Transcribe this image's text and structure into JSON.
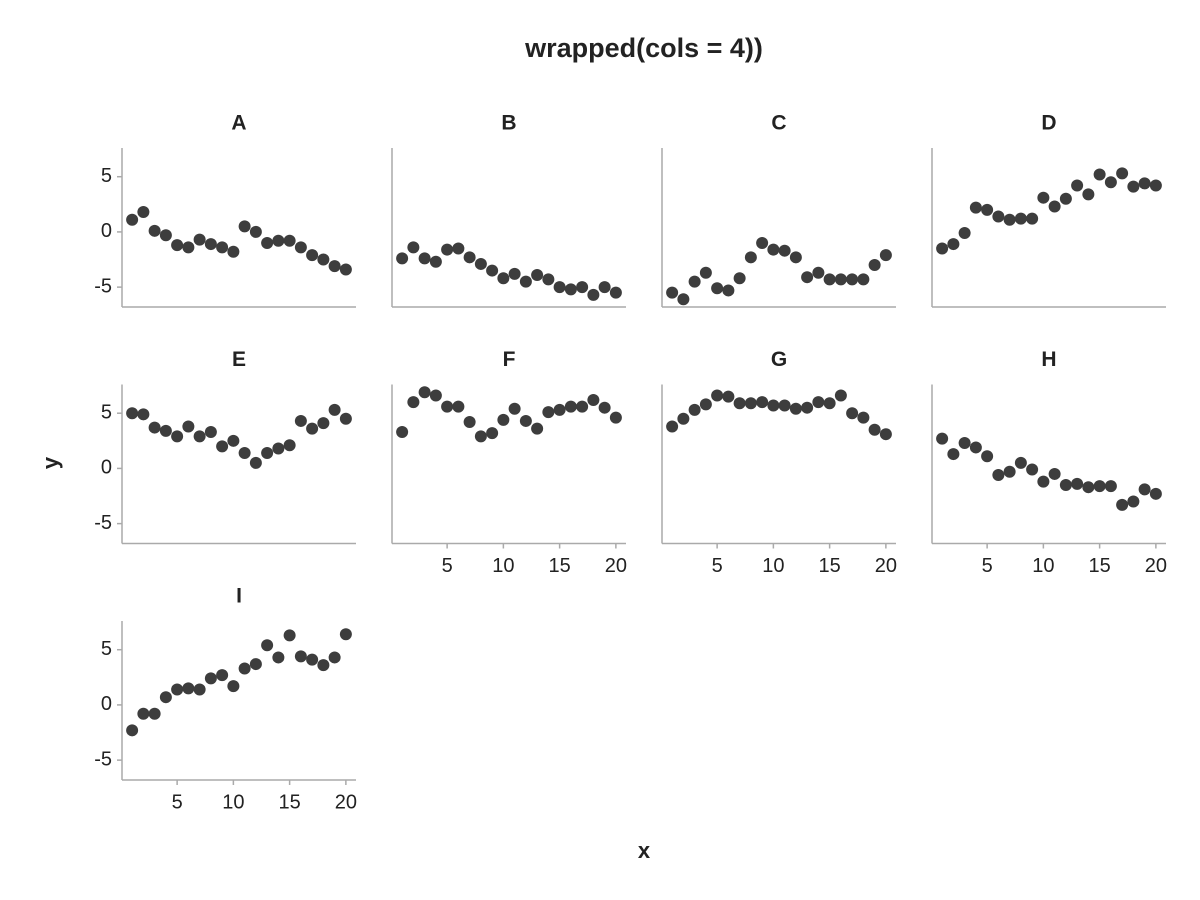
{
  "chart_data": {
    "type": "scatter",
    "title": "wrapped(cols = 4))",
    "x_label": "x",
    "y_label": "y",
    "facet_cols": 4,
    "x": [
      1,
      2,
      3,
      4,
      5,
      6,
      7,
      8,
      9,
      10,
      11,
      12,
      13,
      14,
      15,
      16,
      17,
      18,
      19,
      20
    ],
    "xlim": [
      0.1,
      20.9
    ],
    "xticks": [
      5,
      10,
      15,
      20
    ],
    "ylim": [
      -6.8,
      7.6
    ],
    "yticks": [
      -5,
      0,
      5
    ],
    "series": [
      {
        "name": "A",
        "color": "#3d3d3d",
        "values": [
          1.1,
          1.8,
          0.1,
          -0.3,
          -1.2,
          -1.4,
          -0.7,
          -1.1,
          -1.4,
          -1.8,
          0.5,
          0,
          -1,
          -0.8,
          -0.8,
          -1.4,
          -2.1,
          -2.5,
          -3.1,
          -3.4
        ]
      },
      {
        "name": "B",
        "color": "#3d3d3d",
        "values": [
          -2.4,
          -1.4,
          -2.4,
          -2.7,
          -1.6,
          -1.5,
          -2.3,
          -2.9,
          -3.5,
          -4.2,
          -3.8,
          -4.5,
          -3.9,
          -4.3,
          -5.0,
          -5.2,
          -5.0,
          -5.7,
          -5.0,
          -5.5
        ]
      },
      {
        "name": "C",
        "color": "#3d3d3d",
        "values": [
          -5.5,
          -6.1,
          -4.5,
          -3.7,
          -5.1,
          -5.3,
          -4.2,
          -2.3,
          -1.0,
          -1.6,
          -1.7,
          -2.3,
          -4.1,
          -3.7,
          -4.3,
          -4.3,
          -4.3,
          -4.3,
          -3.0,
          -2.1
        ]
      },
      {
        "name": "D",
        "color": "#3d3d3d",
        "values": [
          -1.5,
          -1.1,
          -0.1,
          2.2,
          2.0,
          1.4,
          1.1,
          1.2,
          1.2,
          3.1,
          2.3,
          3.0,
          4.2,
          3.4,
          5.2,
          4.5,
          5.3,
          4.1,
          4.4,
          4.2
        ]
      },
      {
        "name": "E",
        "color": "#3d3d3d",
        "values": [
          5.0,
          4.9,
          3.7,
          3.4,
          2.9,
          3.8,
          2.9,
          3.3,
          2.0,
          2.5,
          1.4,
          0.5,
          1.4,
          1.8,
          2.1,
          4.3,
          3.6,
          4.1,
          5.3,
          4.5
        ]
      },
      {
        "name": "F",
        "color": "#3d3d3d",
        "values": [
          3.3,
          6.0,
          6.9,
          6.6,
          5.6,
          5.6,
          4.2,
          2.9,
          3.2,
          4.4,
          5.4,
          4.3,
          3.6,
          5.1,
          5.3,
          5.6,
          5.6,
          6.2,
          5.5,
          4.6
        ]
      },
      {
        "name": "G",
        "color": "#3d3d3d",
        "values": [
          3.8,
          4.5,
          5.3,
          5.8,
          6.6,
          6.5,
          5.9,
          5.9,
          6.0,
          5.7,
          5.7,
          5.4,
          5.5,
          6.0,
          5.9,
          6.6,
          5.0,
          4.6,
          3.5,
          3.1
        ]
      },
      {
        "name": "H",
        "color": "#3d3d3d",
        "values": [
          2.7,
          1.3,
          2.3,
          1.9,
          1.1,
          -0.6,
          -0.3,
          0.5,
          -0.1,
          -1.2,
          -0.5,
          -1.5,
          -1.4,
          -1.7,
          -1.6,
          -1.6,
          -3.3,
          -3.0,
          -1.9,
          -2.3
        ]
      },
      {
        "name": "I",
        "color": "#3d3d3d",
        "values": [
          -2.3,
          -0.8,
          -0.8,
          0.7,
          1.4,
          1.5,
          1.4,
          2.4,
          2.7,
          1.7,
          3.3,
          3.7,
          5.4,
          4.3,
          6.3,
          4.4,
          4.1,
          3.6,
          4.3,
          6.4
        ]
      }
    ]
  }
}
